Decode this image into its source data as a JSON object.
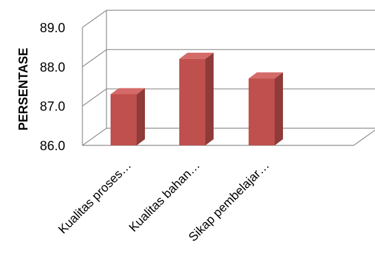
{
  "chart_data": {
    "type": "bar",
    "style": "3d-column",
    "title": "",
    "xlabel": "",
    "ylabel": "PERSENTASE",
    "ylim": [
      86.0,
      89.0
    ],
    "yticks": [
      "86.0",
      "87.0",
      "88.0",
      "89.0"
    ],
    "grid": true,
    "legend": "none",
    "categories": [
      "Kualitas proses…",
      "Kualitas bahan…",
      "Sikap pembelajar…"
    ],
    "values": [
      87.3,
      88.2,
      87.7
    ],
    "colors": {
      "bar_front": "#C0504D",
      "bar_side": "#8E3B39",
      "bar_top": "#D46B68",
      "grid": "#8C8C8C"
    }
  }
}
